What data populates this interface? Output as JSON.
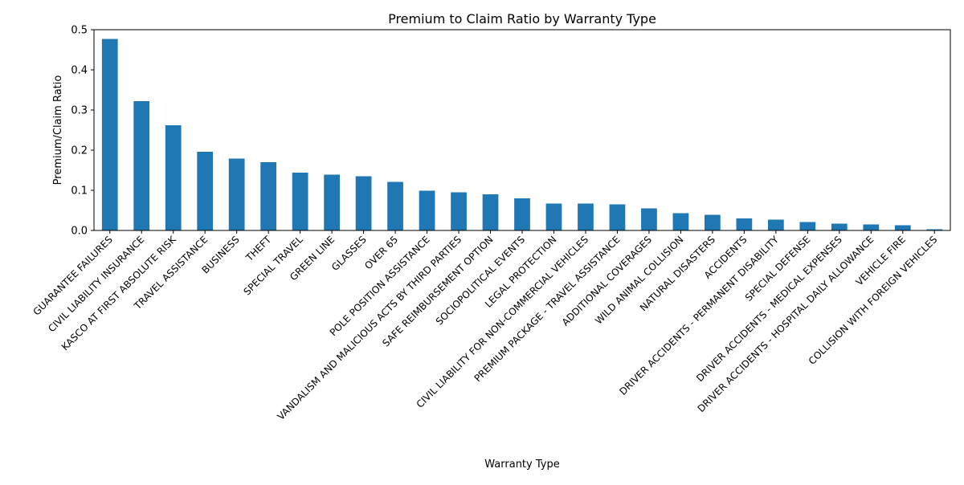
{
  "chart_data": {
    "type": "bar",
    "title": "Premium to Claim Ratio by Warranty Type",
    "xlabel": "Warranty Type",
    "ylabel": "Premium/Claim Ratio",
    "ylim": [
      0,
      0.5
    ],
    "yticks": [
      "0.0",
      "0.1",
      "0.2",
      "0.3",
      "0.4",
      "0.5"
    ],
    "bar_color": "#1f77b4",
    "grid": false,
    "legend": "none",
    "categories": [
      "GUARANTEE FAILURES",
      "CIVIL LIABILITY INSURANCE",
      "KASCO AT FIRST ABSOLUTE RISK",
      "TRAVEL ASSISTANCE",
      "BUSINESS",
      "THEFT",
      "SPECIAL TRAVEL",
      "GREEN LINE",
      "GLASSES",
      "OVER 65",
      "POLE POSITION ASSISTANCE",
      "VANDALISM AND MALICIOUS ACTS BY THIRD PARTIES",
      "SAFE REIMBURSEMENT OPTION",
      "SOCIOPOLITICAL EVENTS",
      "LEGAL PROTECTION",
      "CIVIL LIABILITY FOR NON-COMMERCIAL VEHICLES",
      "PREMIUM PACKAGE - TRAVEL ASSISTANCE",
      "ADDITIONAL COVERAGES",
      "WILD ANIMAL COLLISION",
      "NATURAL DISASTERS",
      "ACCIDENTS",
      "DRIVER ACCIDENTS - PERMANENT DISABILITY",
      "SPECIAL DEFENSE",
      "DRIVER ACCIDENTS - MEDICAL EXPENSES",
      "DRIVER ACCIDENTS - HOSPITAL DAILY ALLOWANCE",
      "VEHICLE FIRE",
      "COLLISION WITH FOREIGN VEHICLES"
    ],
    "values": [
      0.477,
      0.322,
      0.262,
      0.196,
      0.179,
      0.17,
      0.144,
      0.139,
      0.135,
      0.121,
      0.099,
      0.095,
      0.09,
      0.08,
      0.067,
      0.067,
      0.065,
      0.055,
      0.043,
      0.039,
      0.03,
      0.027,
      0.021,
      0.017,
      0.015,
      0.013,
      0.003
    ]
  }
}
